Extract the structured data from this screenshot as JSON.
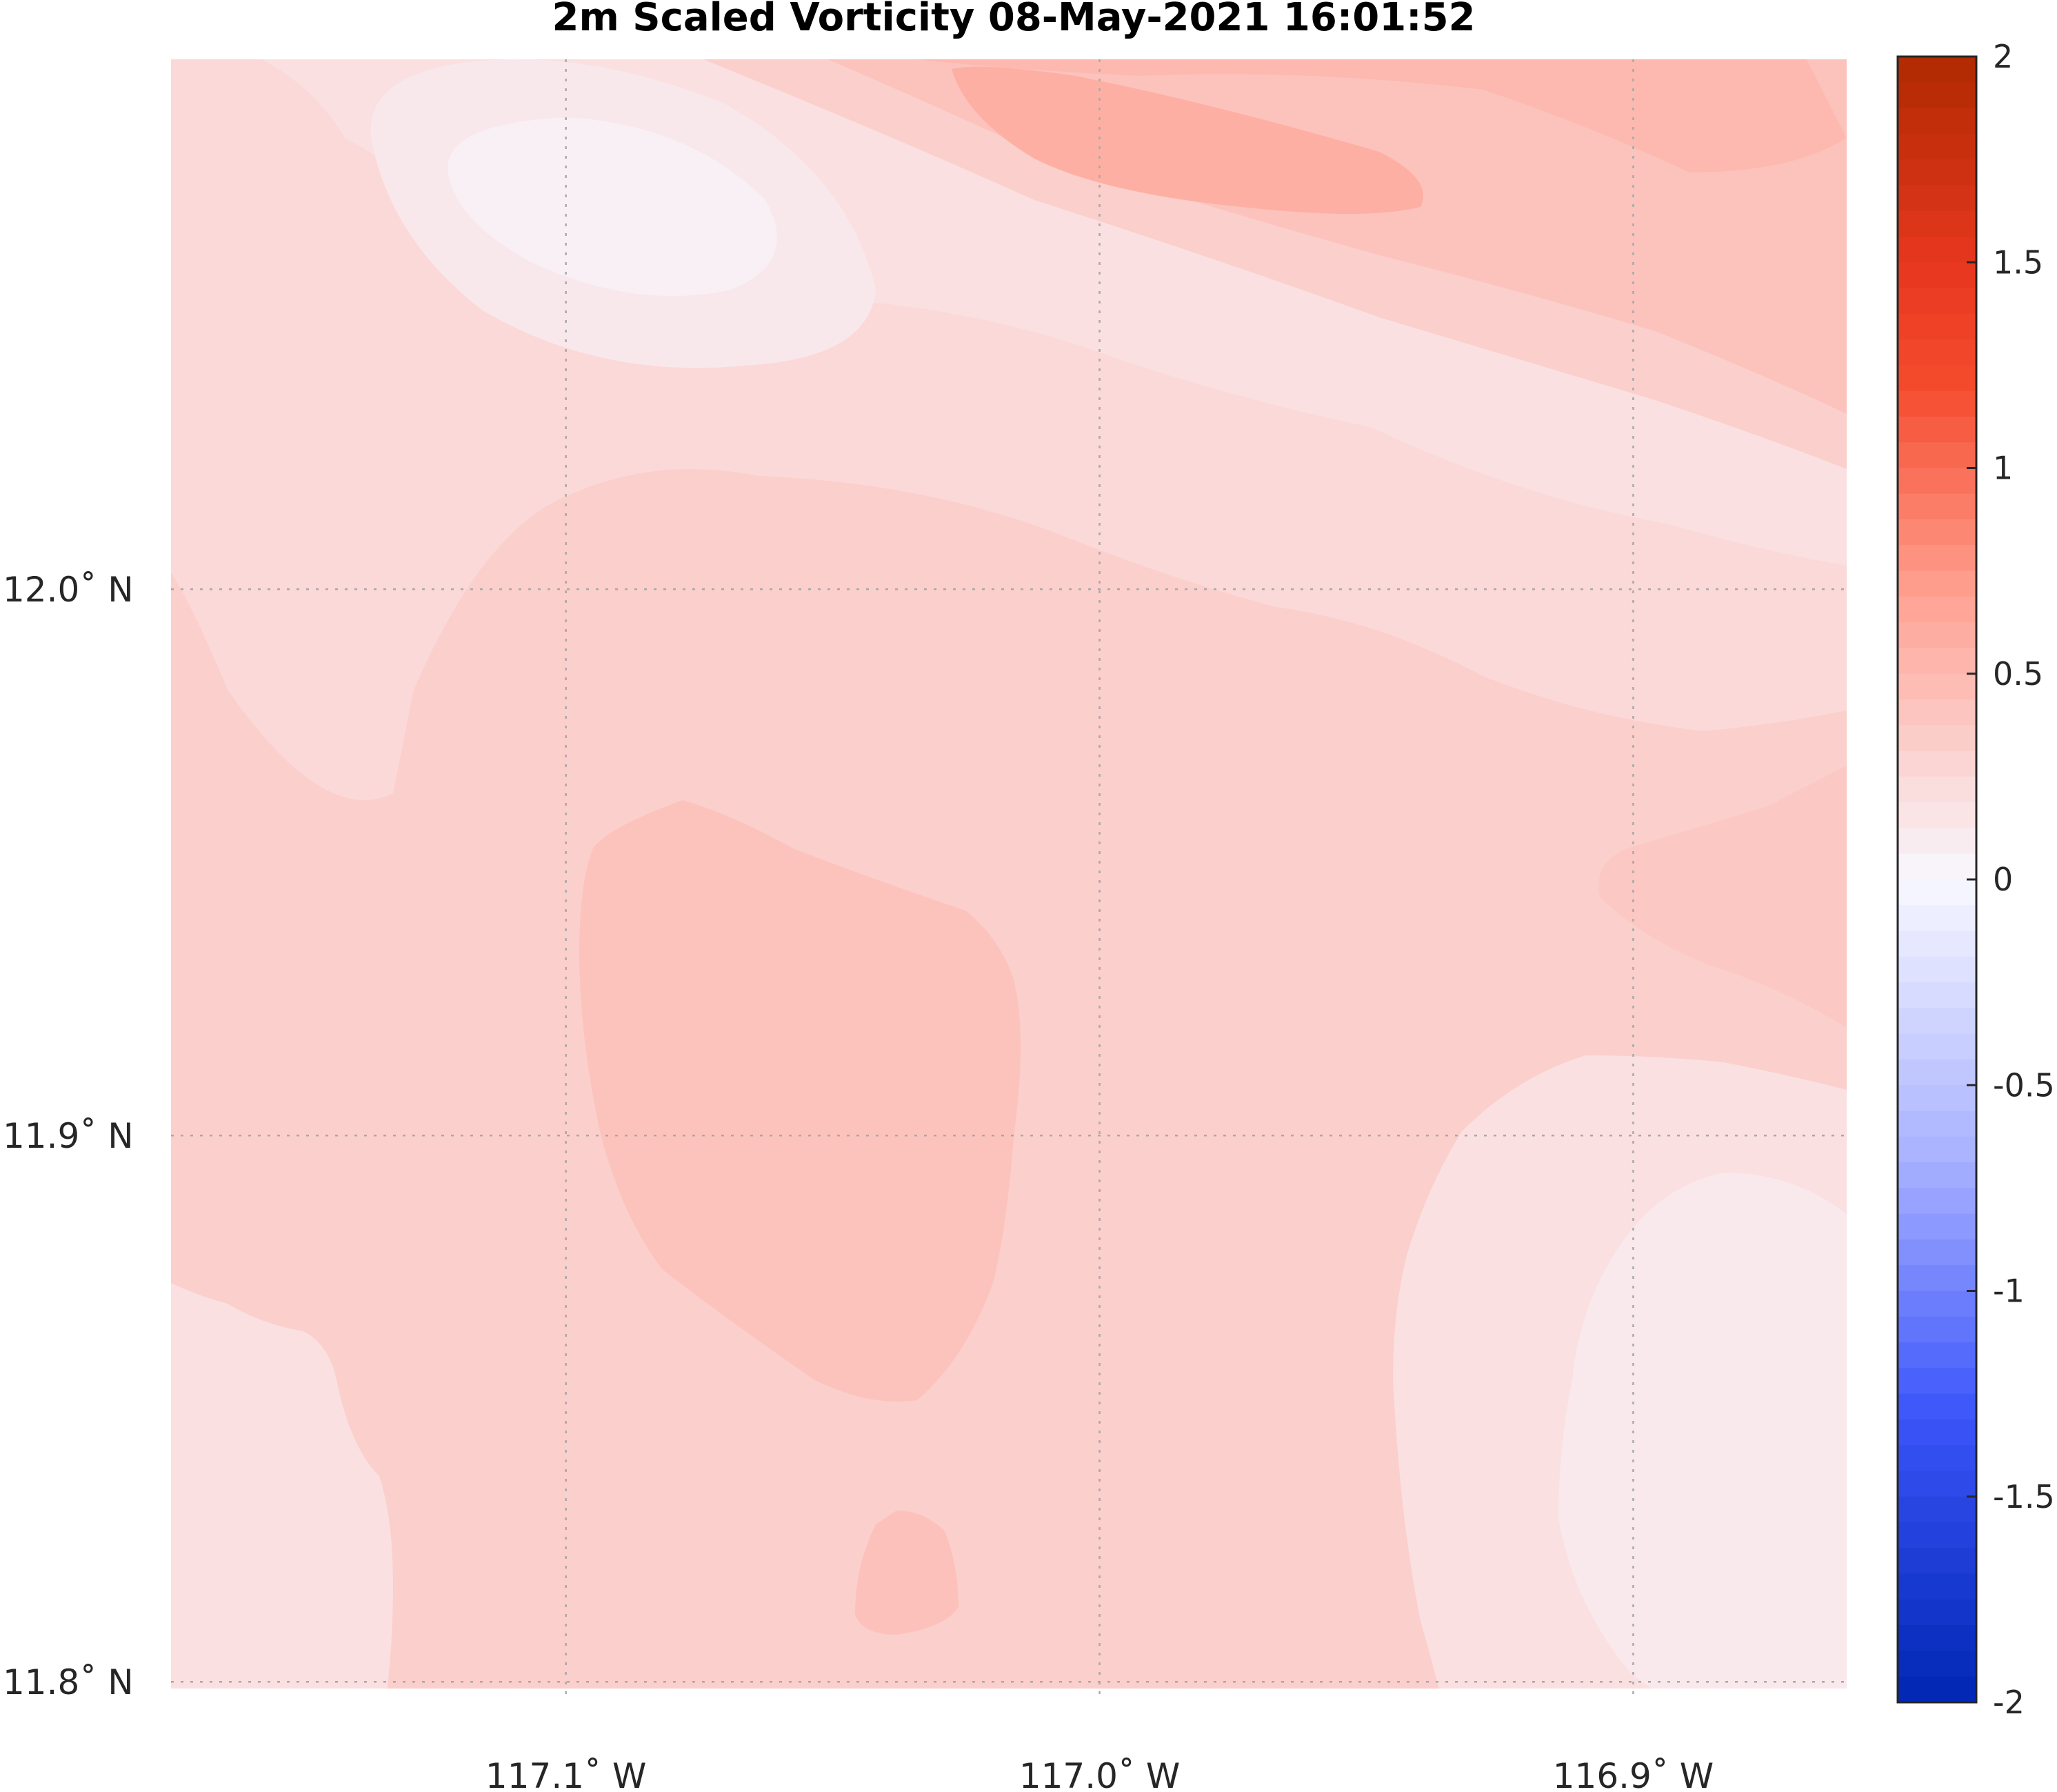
{
  "chart_data": {
    "type": "heatmap",
    "title": "2m Scaled Vorticity  08-May-2021 16:01:52",
    "xlabel": "",
    "ylabel": "",
    "xlim": [
      -117.174,
      -116.86
    ],
    "ylim": [
      11.797,
      12.097
    ],
    "x_ticks": [
      {
        "value": -117.1,
        "label": "117.1˚ W"
      },
      {
        "value": -117.0,
        "label": "117.0˚ W"
      },
      {
        "value": -116.9,
        "label": "116.9˚ W"
      }
    ],
    "y_ticks": [
      {
        "value": 12.0,
        "label": "12.0˚ N"
      },
      {
        "value": 11.9,
        "label": "11.9˚ N"
      },
      {
        "value": 11.8,
        "label": "11.8˚ N"
      }
    ],
    "grid": true,
    "colorbar": {
      "range": [
        -2,
        2
      ],
      "levels": 64,
      "low_color": "#0026b2",
      "mid_color": "#f8f8ff",
      "high_color": "#b02a00",
      "ticks": [
        {
          "value": 2,
          "label": "2"
        },
        {
          "value": 1.5,
          "label": "1.5"
        },
        {
          "value": 1,
          "label": "1"
        },
        {
          "value": 0.5,
          "label": "0.5"
        },
        {
          "value": 0,
          "label": "0"
        },
        {
          "value": -0.5,
          "label": "-0.5"
        },
        {
          "value": -1,
          "label": "-1"
        },
        {
          "value": -1.5,
          "label": "-1.5"
        },
        {
          "value": -2,
          "label": "-2"
        }
      ]
    },
    "field_levels": [
      {
        "name": "background",
        "value": 0.33
      },
      {
        "name": "top-left-band",
        "value": 0.25
      },
      {
        "name": "upper-light-band",
        "value": 0.19
      },
      {
        "name": "white-eddy-outer",
        "value": 0.13
      },
      {
        "name": "white-eddy-inner",
        "value": 0.06
      },
      {
        "name": "upper-right-band-1",
        "value": 0.33
      },
      {
        "name": "upper-right-band-2",
        "value": 0.42
      },
      {
        "name": "upper-right-band-3",
        "value": 0.5
      },
      {
        "name": "upper-right-core",
        "value": 0.58
      },
      {
        "name": "central-blob",
        "value": 0.42
      },
      {
        "name": "right-lobe",
        "value": 0.38
      },
      {
        "name": "lower-left-light",
        "value": 0.19
      },
      {
        "name": "lower-right-light",
        "value": 0.19
      },
      {
        "name": "lower-right-lighter",
        "value": 0.12
      },
      {
        "name": "bottom-blob",
        "value": 0.44
      }
    ]
  }
}
